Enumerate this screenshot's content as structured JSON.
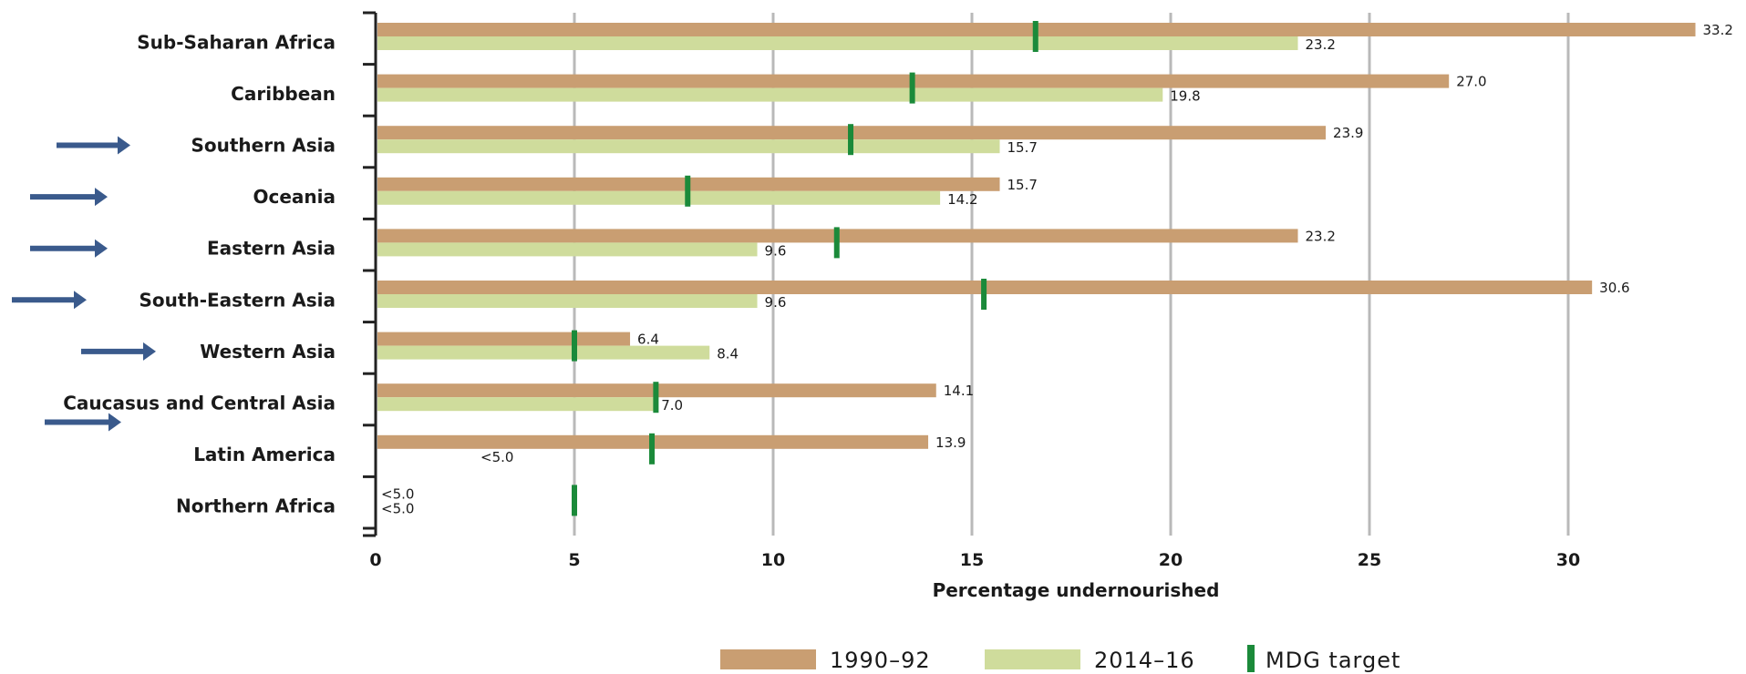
{
  "colors": {
    "series_1990": "#c99e72",
    "series_2014": "#cfdc9c",
    "target": "#1b8a3a",
    "gridline": "#b9b9b9",
    "axis": "#222222",
    "arrow": "#3a5a8c"
  },
  "chart_data": {
    "type": "bar",
    "orientation": "horizontal",
    "xlabel": "Percentage undernourished",
    "xlim": [
      0,
      33.5
    ],
    "xticks": [
      0,
      5,
      10,
      15,
      20,
      25,
      30
    ],
    "grid": true,
    "legend_position": "bottom",
    "categories": [
      "Sub-Saharan Africa",
      "Caribbean",
      "Southern Asia",
      "Oceania",
      "Eastern Asia",
      "South-Eastern Asia",
      "Western Asia",
      "Caucasus and Central Asia",
      "Latin America",
      "Northern Africa"
    ],
    "series": [
      {
        "name": "1990–92",
        "values": [
          33.2,
          27.0,
          23.9,
          15.7,
          23.2,
          30.6,
          6.4,
          14.1,
          13.9,
          null
        ],
        "labels": [
          "33.2",
          "27.0",
          "23.9",
          "15.7",
          "23.2",
          "30.6",
          "6.4",
          "14.1",
          "13.9",
          "<5.0"
        ]
      },
      {
        "name": "2014–16",
        "values": [
          23.2,
          19.8,
          15.7,
          14.2,
          9.6,
          9.6,
          8.4,
          7.0,
          null,
          null
        ],
        "labels": [
          "23.2",
          "19.8",
          "15.7",
          "14.2",
          "9.6",
          "9.6",
          "8.4",
          "7.0",
          "<5.0",
          "<5.0"
        ]
      }
    ],
    "mdg_target": {
      "name": "MDG target",
      "values": [
        16.6,
        13.5,
        11.95,
        7.85,
        11.6,
        15.3,
        5.0,
        7.05,
        6.95,
        5.0
      ]
    },
    "arrows_on": [
      "Southern Asia",
      "Oceania",
      "Eastern Asia",
      "South-Eastern Asia",
      "Western Asia",
      "Caucasus and Central Asia"
    ]
  }
}
